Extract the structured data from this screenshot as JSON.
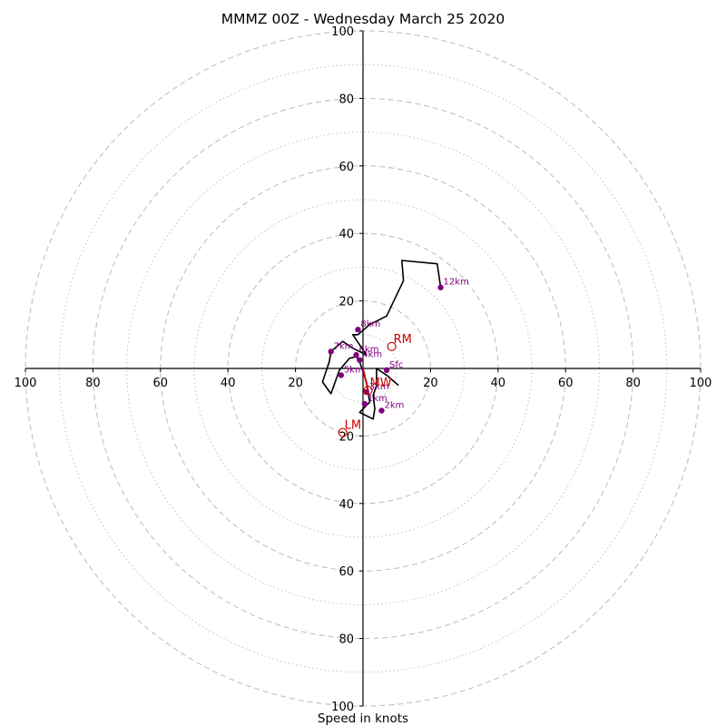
{
  "chart_data": {
    "type": "hodograph",
    "title": "MMMZ 00Z - Wednesday March 25 2020",
    "xlabel": "Speed in knots",
    "ylabel": "",
    "units": "knots",
    "range": [
      -100,
      100
    ],
    "rings_major": [
      20,
      40,
      60,
      80,
      100
    ],
    "rings_minor": [
      10,
      30,
      50,
      70,
      90
    ],
    "ticks": [
      -100,
      -80,
      -60,
      -40,
      -20,
      20,
      40,
      60,
      80,
      100
    ],
    "tick_labels": [
      "100",
      "80",
      "60",
      "40",
      "20",
      "20",
      "40",
      "60",
      "80",
      "100"
    ],
    "grid": true,
    "trace": {
      "color": "#000000",
      "points": [
        [
          10.5,
          -5
        ],
        [
          7,
          -2
        ],
        [
          4,
          0
        ],
        [
          4,
          -5
        ],
        [
          3,
          -8
        ],
        [
          3.5,
          -12
        ],
        [
          3,
          -15
        ],
        [
          -1,
          -13
        ],
        [
          2,
          -10
        ],
        [
          1,
          -4
        ],
        [
          0,
          -1
        ],
        [
          -1,
          2
        ],
        [
          -2,
          3.5
        ],
        [
          -4,
          3
        ],
        [
          -7,
          -0.5
        ],
        [
          -9.5,
          -7.5
        ],
        [
          -12,
          -4
        ],
        [
          -10,
          2
        ],
        [
          -9.5,
          5
        ],
        [
          -6,
          8
        ],
        [
          -3,
          6
        ],
        [
          1,
          4
        ],
        [
          -3,
          10
        ],
        [
          -1.5,
          10
        ],
        [
          2,
          13
        ],
        [
          7,
          15.5
        ],
        [
          12,
          26
        ],
        [
          11.5,
          32
        ],
        [
          22,
          31
        ],
        [
          23,
          24
        ]
      ]
    },
    "height_markers": [
      {
        "label": "Sfc",
        "u": 7,
        "v": -0.5
      },
      {
        "label": "1km",
        "u": 0.5,
        "v": -10.5
      },
      {
        "label": "2km",
        "u": 5.5,
        "v": -12.5
      },
      {
        "label": "3km",
        "u": 1,
        "v": -7
      },
      {
        "label": "4km",
        "u": -1,
        "v": 2.5
      },
      {
        "label": "5km",
        "u": -6.5,
        "v": -2
      },
      {
        "label": "6km",
        "u": -2,
        "v": 4
      },
      {
        "label": "7km",
        "u": -9.5,
        "v": 5
      },
      {
        "label": "8km",
        "u": -1.5,
        "v": 11.5
      },
      {
        "label": "12km",
        "u": 23,
        "v": 24
      }
    ],
    "motion_markers": [
      {
        "label": "RM",
        "u": 8.5,
        "v": 6.5
      },
      {
        "label": "LM",
        "u": -6,
        "v": -19
      },
      {
        "label": "MW",
        "u": 1.5,
        "v": -6.5
      }
    ],
    "mean_wind_line": {
      "color": "#cc0000",
      "points": [
        [
          0,
          0
        ],
        [
          1.5,
          -6.5
        ]
      ]
    },
    "colors": {
      "trace": "#000000",
      "height_markers": "#800080",
      "motion_markers": "#cc0000",
      "grid": "#c0c0c0"
    }
  }
}
